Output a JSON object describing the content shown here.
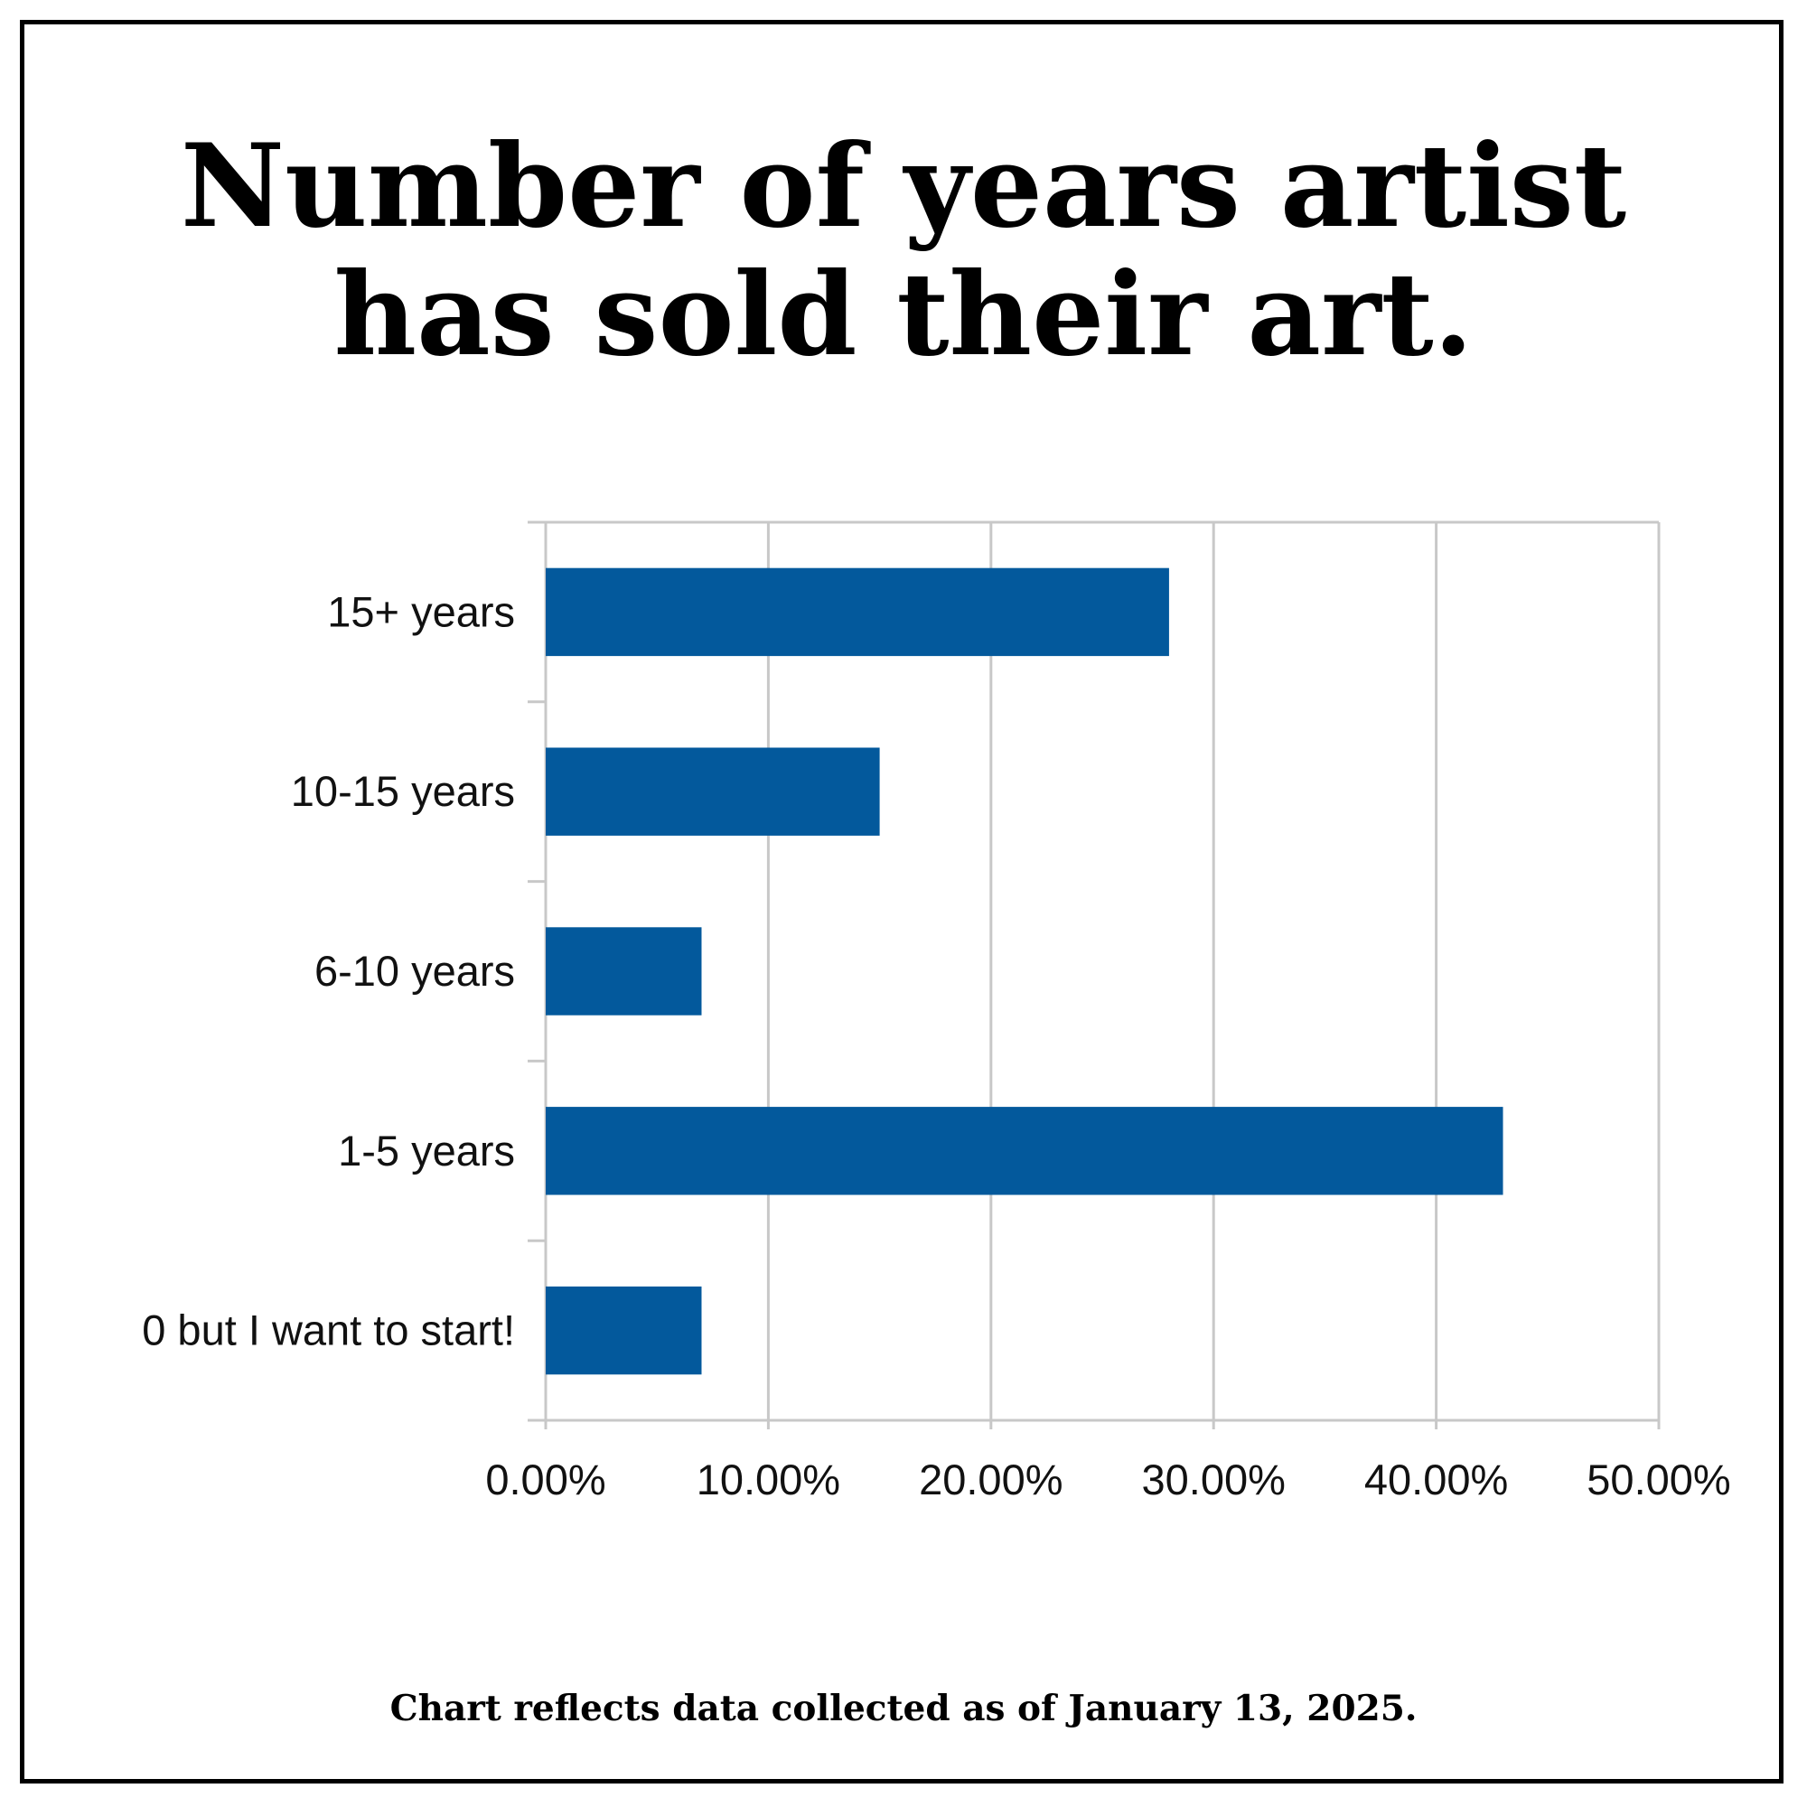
{
  "chart_data": {
    "type": "bar",
    "orientation": "horizontal",
    "title_lines": [
      "Number of years artist",
      "has sold their art."
    ],
    "categories": [
      "15+ years",
      "10-15 years",
      "6-10 years",
      "1-5 years",
      "0 but I want to start!"
    ],
    "values": [
      28,
      15,
      7,
      43,
      7
    ],
    "value_unit": "percent",
    "xlim": [
      0,
      50
    ],
    "x_ticks": [
      0,
      10,
      20,
      30,
      40,
      50
    ],
    "x_tick_labels": [
      "0.00%",
      "10.00%",
      "20.00%",
      "30.00%",
      "40.00%",
      "50.00%"
    ],
    "xlabel": "",
    "ylabel": "",
    "grid": "vertical",
    "legend": "none",
    "bar_color": "#03599C",
    "grid_color": "#C8C8C8"
  },
  "footnote": "Chart reflects data collected as of January 13, 2025."
}
